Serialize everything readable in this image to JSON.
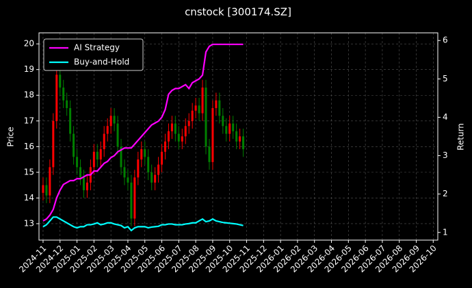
{
  "chart_data": {
    "type": "candlestick",
    "title": "cnstock [300174.SZ]",
    "ylabel": "Price",
    "y2label": "Return",
    "x": [
      0,
      0.2,
      0.4,
      0.6,
      0.8,
      1,
      1.2,
      1.4,
      1.6,
      1.8,
      2,
      2.2,
      2.4,
      2.6,
      2.8,
      3,
      3.2,
      3.4,
      3.6,
      3.8,
      4,
      4.2,
      4.4,
      4.6,
      4.8,
      5,
      5.2,
      5.4,
      5.6,
      5.8,
      6,
      6.2,
      6.4,
      6.6,
      6.8,
      7,
      7.2,
      7.4,
      7.6,
      7.8,
      8,
      8.2,
      8.4,
      8.6,
      8.8,
      9,
      9.2,
      9.4,
      9.6,
      9.8,
      10,
      10.2,
      10.4,
      10.6,
      10.8,
      11,
      11.2,
      11.4,
      11.6,
      11.8
    ],
    "xlim": [
      -0.24,
      23.27
    ],
    "xticks": [
      {
        "value": 0,
        "label": "2024-11"
      },
      {
        "value": 1,
        "label": "2024-12"
      },
      {
        "value": 2,
        "label": "2025-01"
      },
      {
        "value": 3,
        "label": "2025-02"
      },
      {
        "value": 4,
        "label": "2025-03"
      },
      {
        "value": 5,
        "label": "2025-04"
      },
      {
        "value": 6,
        "label": "2025-05"
      },
      {
        "value": 7,
        "label": "2025-06"
      },
      {
        "value": 8,
        "label": "2025-07"
      },
      {
        "value": 9,
        "label": "2025-08"
      },
      {
        "value": 10,
        "label": "2025-09"
      },
      {
        "value": 11,
        "label": "2025-10"
      },
      {
        "value": 12,
        "label": "2025-11"
      },
      {
        "value": 13,
        "label": "2025-12"
      },
      {
        "value": 14,
        "label": "2026-01"
      },
      {
        "value": 15,
        "label": "2026-02"
      },
      {
        "value": 16,
        "label": "2026-03"
      },
      {
        "value": 17,
        "label": "2026-04"
      },
      {
        "value": 18,
        "label": "2026-05"
      },
      {
        "value": 19,
        "label": "2026-06"
      },
      {
        "value": 20,
        "label": "2026-07"
      },
      {
        "value": 21,
        "label": "2026-08"
      },
      {
        "value": 22,
        "label": "2026-09"
      },
      {
        "value": 23,
        "label": "2026-10"
      }
    ],
    "ylim": [
      12.36,
      20.43
    ],
    "yticks": [
      13,
      14,
      15,
      16,
      17,
      18,
      19,
      20
    ],
    "y2lim": [
      0.8,
      6.2
    ],
    "y2ticks": [
      1,
      2,
      3,
      4,
      5,
      6
    ],
    "grid": true,
    "legend": "upper left",
    "candles": {
      "up_color": "#ff0000",
      "down_color": "#008000",
      "open": [
        14.2,
        14.5,
        14.1,
        15.2,
        17.0,
        18.8,
        18.3,
        17.8,
        17.5,
        16.5,
        15.6,
        15.2,
        14.8,
        14.3,
        14.6,
        15.2,
        15.8,
        15.5,
        15.9,
        16.5,
        16.8,
        17.2,
        16.9,
        16.0,
        15.2,
        14.8,
        14.6,
        13.2,
        14.8,
        15.5,
        15.9,
        15.6,
        15.0,
        14.6,
        14.9,
        15.3,
        15.8,
        16.2,
        16.6,
        16.9,
        16.5,
        16.2,
        16.4,
        16.8,
        17.0,
        17.4,
        17.6,
        17.3,
        18.3,
        16.0,
        15.4,
        17.5,
        17.8,
        17.2,
        16.8,
        16.5,
        16.9,
        16.6,
        16.2,
        16.4
      ],
      "high": [
        14.8,
        14.8,
        15.5,
        17.3,
        19.1,
        19.1,
        18.6,
        18.1,
        17.8,
        16.8,
        15.9,
        15.5,
        15.1,
        14.9,
        15.5,
        16.1,
        16.1,
        16.2,
        16.8,
        17.1,
        17.5,
        17.5,
        17.2,
        16.3,
        15.5,
        15.1,
        14.9,
        15.1,
        15.8,
        16.2,
        16.2,
        15.9,
        15.3,
        15.2,
        15.6,
        16.1,
        16.5,
        16.9,
        17.2,
        17.2,
        16.8,
        16.7,
        17.1,
        17.3,
        17.7,
        17.9,
        17.9,
        18.6,
        18.6,
        16.3,
        17.8,
        18.1,
        18.1,
        17.5,
        17.1,
        17.2,
        17.2,
        16.9,
        16.7,
        16.7
      ],
      "low": [
        13.9,
        13.8,
        13.8,
        14.9,
        16.7,
        18.0,
        17.5,
        17.2,
        16.2,
        15.3,
        14.9,
        14.5,
        14.0,
        14.0,
        14.3,
        14.9,
        15.2,
        15.2,
        15.6,
        16.2,
        16.5,
        16.6,
        15.7,
        14.9,
        14.5,
        14.3,
        12.9,
        12.9,
        14.5,
        15.2,
        15.3,
        14.7,
        14.3,
        14.3,
        14.6,
        15.0,
        15.5,
        15.9,
        16.3,
        16.2,
        15.9,
        15.9,
        16.1,
        16.5,
        16.7,
        17.1,
        17.0,
        17.0,
        15.7,
        15.1,
        15.1,
        17.2,
        16.9,
        16.5,
        16.2,
        16.2,
        16.3,
        15.9,
        15.9,
        15.6
      ],
      "close": [
        14.5,
        14.1,
        15.2,
        17.0,
        18.8,
        18.3,
        17.8,
        17.5,
        16.5,
        15.6,
        15.2,
        14.8,
        14.3,
        14.6,
        15.2,
        15.8,
        15.5,
        15.9,
        16.5,
        16.8,
        17.2,
        16.9,
        16.0,
        15.2,
        14.8,
        14.6,
        13.2,
        14.8,
        15.5,
        15.9,
        15.6,
        15.0,
        14.6,
        14.9,
        15.3,
        15.8,
        16.2,
        16.6,
        16.9,
        16.5,
        16.2,
        16.4,
        16.8,
        17.0,
        17.4,
        17.6,
        17.3,
        18.3,
        16.0,
        15.4,
        17.5,
        17.8,
        17.2,
        16.8,
        16.5,
        16.9,
        16.6,
        16.2,
        16.4,
        15.9
      ]
    },
    "series": [
      {
        "name": "AI Strategy",
        "color": "#ff00ff",
        "axis": "y2",
        "values": [
          1.3,
          1.35,
          1.45,
          1.6,
          1.9,
          2.1,
          2.25,
          2.3,
          2.35,
          2.35,
          2.4,
          2.4,
          2.45,
          2.5,
          2.5,
          2.6,
          2.6,
          2.7,
          2.8,
          2.85,
          2.95,
          3.0,
          3.1,
          3.15,
          3.2,
          3.2,
          3.2,
          3.3,
          3.4,
          3.5,
          3.6,
          3.7,
          3.8,
          3.85,
          3.9,
          4.0,
          4.2,
          4.6,
          4.7,
          4.75,
          4.75,
          4.8,
          4.85,
          4.75,
          4.9,
          4.95,
          5.0,
          5.1,
          5.7,
          5.85,
          5.9,
          5.9,
          5.9,
          5.9,
          5.9,
          5.9,
          5.9,
          5.9,
          5.9,
          5.9
        ]
      },
      {
        "name": "Buy-and-Hold",
        "color": "#00ffff",
        "axis": "y2",
        "values": [
          1.15,
          1.2,
          1.3,
          1.4,
          1.4,
          1.35,
          1.3,
          1.25,
          1.2,
          1.15,
          1.12,
          1.15,
          1.15,
          1.2,
          1.2,
          1.22,
          1.25,
          1.2,
          1.22,
          1.25,
          1.25,
          1.22,
          1.2,
          1.18,
          1.12,
          1.15,
          1.05,
          1.12,
          1.15,
          1.15,
          1.15,
          1.12,
          1.14,
          1.15,
          1.16,
          1.2,
          1.2,
          1.22,
          1.22,
          1.2,
          1.2,
          1.2,
          1.22,
          1.23,
          1.25,
          1.25,
          1.3,
          1.35,
          1.28,
          1.3,
          1.35,
          1.3,
          1.28,
          1.26,
          1.25,
          1.24,
          1.23,
          1.22,
          1.2,
          1.18
        ]
      }
    ]
  }
}
